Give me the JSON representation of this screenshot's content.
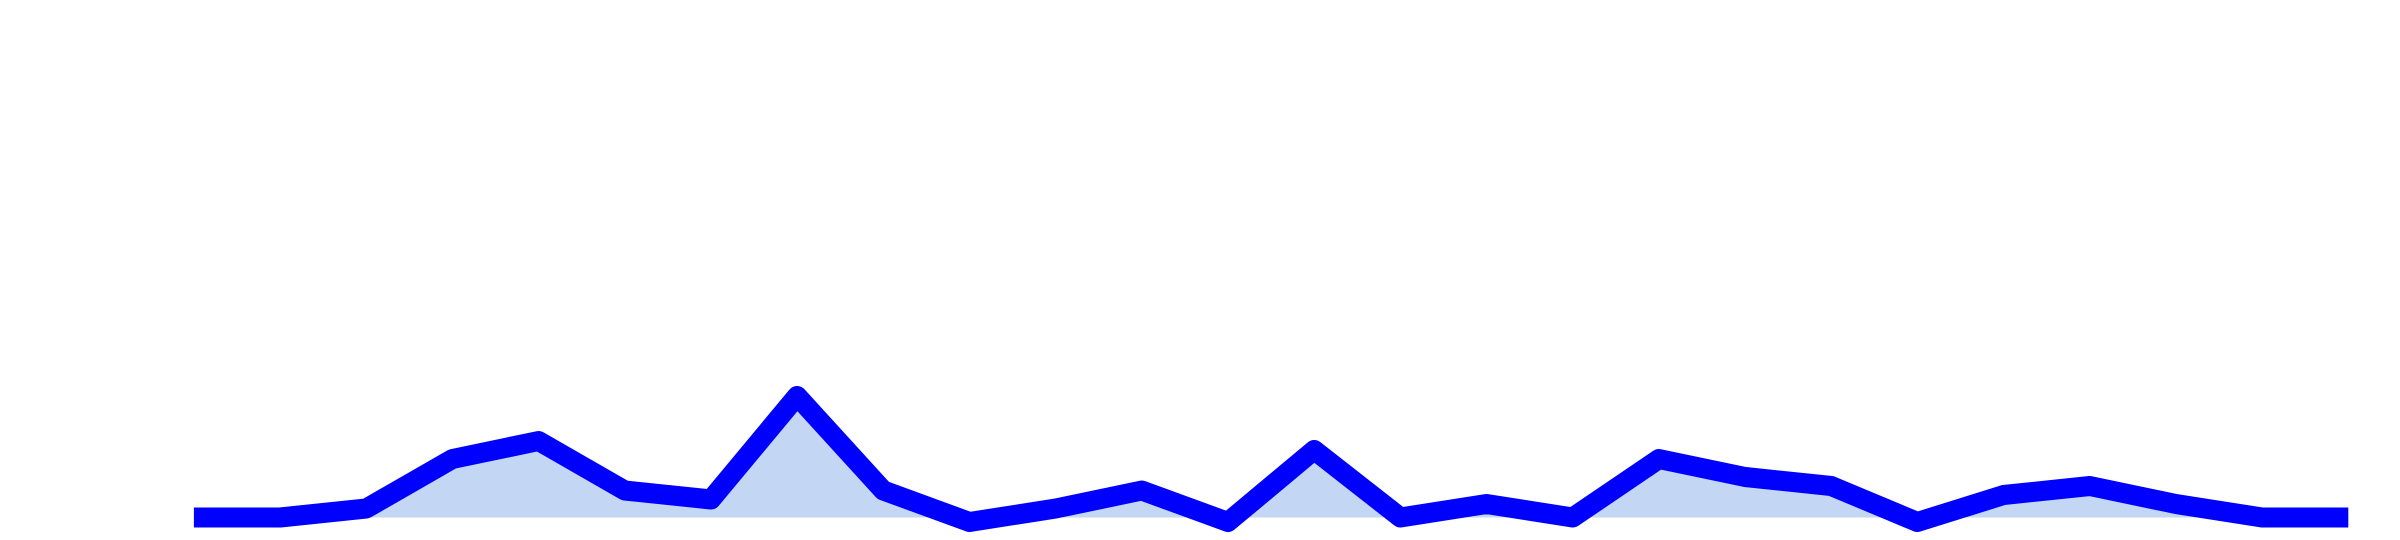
{
  "chart_data": {
    "type": "area",
    "title": "",
    "xlabel": "",
    "ylabel": "",
    "x": [
      0,
      1,
      2,
      3,
      4,
      5,
      6,
      7,
      8,
      9,
      10,
      11,
      12,
      13,
      14,
      15,
      16,
      17,
      18,
      19,
      20,
      21,
      22,
      23,
      24,
      25
    ],
    "series": [
      {
        "values": [
          0.0,
          0.0,
          0.4,
          2.6,
          3.4,
          1.2,
          0.8,
          5.4,
          1.2,
          -0.2,
          0.4,
          1.2,
          -0.2,
          3.0,
          0.0,
          0.6,
          0.0,
          2.6,
          1.8,
          1.4,
          -0.2,
          1.0,
          1.4,
          0.6,
          0.0,
          0.0
        ],
        "color": "#0000ff",
        "fill": "#c3d6f3"
      }
    ],
    "xlim": [
      -2.25,
      25.6
    ],
    "ylim": [
      -1,
      23
    ],
    "grid": false,
    "legend": "none"
  }
}
